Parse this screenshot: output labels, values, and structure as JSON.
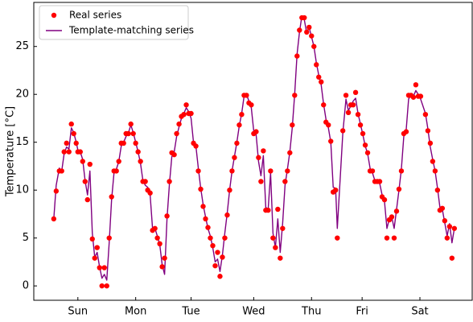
{
  "chart_data": {
    "type": "scatter",
    "y_label": "Temperature [°C]",
    "xlim": [
      -8.3,
      173.7
    ],
    "ylim": [
      -1.5,
      29.6
    ],
    "xticks": [
      {
        "value": 10,
        "label": "Sun"
      },
      {
        "value": 34,
        "label": "Mon"
      },
      {
        "value": 57,
        "label": "Tue"
      },
      {
        "value": 83,
        "label": "Wed"
      },
      {
        "value": 107,
        "label": "Thu"
      },
      {
        "value": 128,
        "label": "Fri"
      },
      {
        "value": 152,
        "label": "Sat"
      }
    ],
    "yticks": [
      0,
      5,
      10,
      15,
      20,
      25
    ],
    "legend": "upper left",
    "x": [
      0,
      1,
      2.3,
      3.3,
      4.3,
      5.3,
      6.3,
      7.3,
      8.3,
      9.3,
      10,
      11,
      12,
      13,
      14,
      15,
      16,
      17,
      18,
      19,
      20,
      21,
      22,
      23,
      24,
      25,
      26,
      27,
      28,
      29,
      30,
      31,
      32,
      33,
      34,
      35,
      36,
      37,
      38,
      39,
      40,
      41,
      42,
      43,
      44,
      45,
      46,
      47,
      48,
      49,
      50,
      51,
      52,
      53,
      54,
      55,
      56,
      57,
      58,
      59,
      60,
      61,
      62,
      63,
      64,
      65,
      66,
      67,
      68,
      69,
      70,
      71,
      72,
      73,
      74,
      75,
      76,
      77,
      78,
      79,
      80,
      81,
      82,
      83,
      84,
      85,
      86,
      87,
      88,
      89,
      90,
      91,
      92,
      93,
      94,
      95,
      96,
      97,
      98,
      99,
      100,
      101,
      102,
      103,
      104,
      105,
      106,
      107,
      108,
      109,
      110,
      111,
      112,
      113,
      114,
      115,
      116,
      117,
      117.7,
      120,
      121.3,
      122.3,
      123.3,
      124.3,
      125.3,
      126.3,
      127.3,
      128.3,
      129.3,
      130.3,
      131.3,
      132.3,
      133.3,
      134.3,
      135.3,
      136.3,
      137.3,
      138.3,
      139.3,
      140.3,
      141.3,
      142.3,
      143.3,
      144.3,
      145.3,
      146.3,
      147.3,
      148.3,
      149.3,
      150.3,
      151.3,
      152.3,
      154.3,
      155.3,
      156.3,
      157.3,
      158.3,
      159.3,
      160.3,
      161.3,
      162.3,
      163.3,
      164.3,
      165.3,
      166.3
    ],
    "series": [
      {
        "name": "Real series",
        "type": "scatter",
        "color": "#ff0000",
        "values": [
          7,
          9.9,
          12,
          12,
          14,
          14.9,
          14,
          16.9,
          15.9,
          14.9,
          14,
          14,
          13,
          10.9,
          9,
          12.7,
          4.9,
          2.9,
          4,
          1.9,
          0,
          1.9,
          0,
          5,
          9.3,
          12,
          12,
          13,
          14.9,
          14.9,
          15.9,
          15.9,
          16.9,
          15.9,
          14.9,
          14,
          13,
          10.9,
          10.9,
          10,
          9.7,
          5.8,
          6,
          5,
          4.4,
          2,
          2.9,
          7.3,
          10.9,
          13.9,
          13.7,
          15.9,
          16.9,
          17.7,
          17.9,
          18.9,
          18,
          18,
          14.9,
          14.6,
          12,
          10.1,
          8.3,
          7,
          6.1,
          5,
          4.2,
          2.1,
          3.5,
          1,
          3,
          5,
          7.4,
          10,
          12,
          13.4,
          14.9,
          16.8,
          17.9,
          19.9,
          19.9,
          19.1,
          18.9,
          15.9,
          16.1,
          13.4,
          10.9,
          14.1,
          7.9,
          7.9,
          12,
          5,
          4,
          8,
          2.9,
          6,
          10.9,
          12,
          13.9,
          16.8,
          19.9,
          24,
          26.7,
          28,
          28,
          26.5,
          27,
          26.1,
          25,
          23.1,
          21.8,
          21.3,
          18.9,
          17.1,
          16.8,
          15.1,
          9.8,
          10,
          5,
          16.2,
          19.9,
          18.1,
          18.9,
          18.9,
          20.2,
          17.9,
          16.8,
          15.9,
          14.7,
          13.9,
          12,
          12,
          10.9,
          10.9,
          10.9,
          9.3,
          9,
          5,
          6.9,
          7.2,
          5,
          7.8,
          10.1,
          12,
          15.9,
          16.1,
          19.9,
          19.9,
          19.7,
          21,
          19.8,
          19.8,
          17.9,
          16.2,
          14.9,
          13,
          12,
          10,
          7.9,
          8.1,
          6.8,
          5,
          6.2,
          2.9,
          6
        ]
      },
      {
        "name": "Template-matching series",
        "type": "line",
        "color": "#800080",
        "values": [
          7,
          10.5,
          12.3,
          12,
          13.8,
          14.5,
          14.3,
          16.5,
          16,
          15,
          14.2,
          14,
          13.2,
          11,
          9.5,
          12,
          5.5,
          3,
          3.5,
          2,
          0.8,
          1.2,
          0.6,
          4.5,
          9,
          11.8,
          12.2,
          13,
          14.6,
          15,
          15.6,
          16,
          16.8,
          16,
          15,
          14,
          12.8,
          11,
          10.5,
          10.3,
          9.5,
          6,
          6,
          5.2,
          4.3,
          2.2,
          1.2,
          7,
          10.6,
          13.5,
          14,
          15.6,
          16.6,
          17.5,
          18,
          18.6,
          18.2,
          17.5,
          15,
          14.6,
          12.3,
          10.2,
          8.5,
          7.2,
          6,
          5.2,
          4,
          2.5,
          2.8,
          1.5,
          3.2,
          5.5,
          7.6,
          10,
          12,
          13.5,
          15,
          16.7,
          18,
          19.8,
          20,
          19.3,
          18.6,
          16.2,
          15.8,
          13,
          11.5,
          13.6,
          8.2,
          8,
          11.8,
          5.5,
          4,
          7,
          3.5,
          6.5,
          10.5,
          12.2,
          14,
          16.5,
          20,
          24.2,
          26.5,
          28.2,
          27.8,
          26.4,
          27,
          26,
          25,
          23.3,
          22,
          21,
          19,
          17.4,
          16.5,
          15,
          10.3,
          10.2,
          6,
          16,
          19.5,
          18.3,
          18.8,
          19.3,
          19.6,
          18,
          16.9,
          15.8,
          14.6,
          13.8,
          12.3,
          11.8,
          11,
          10.8,
          10.7,
          9.5,
          8.8,
          6,
          7,
          7.2,
          6,
          8,
          10,
          12.2,
          15.6,
          16.3,
          19.5,
          20,
          19.8,
          20.4,
          20,
          19.5,
          18,
          16.4,
          14.5,
          13.2,
          12,
          10.2,
          8.2,
          8,
          6.6,
          5.2,
          6.5,
          4.5,
          6
        ]
      }
    ]
  }
}
